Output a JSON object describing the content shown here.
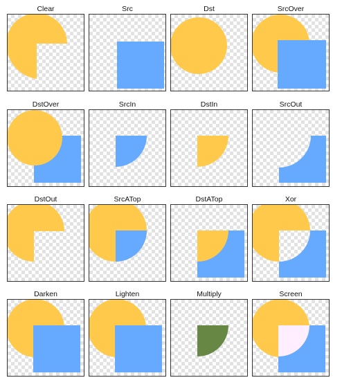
{
  "colors": {
    "circle": "#FFCA4C",
    "square": "#66AAFF",
    "multiply": "#668844",
    "screen": "#FFEEFF"
  },
  "modes": [
    {
      "id": "clear",
      "label": "Clear"
    },
    {
      "id": "src",
      "label": "Src"
    },
    {
      "id": "dst",
      "label": "Dst"
    },
    {
      "id": "srcover",
      "label": "SrcOver"
    },
    {
      "id": "dstover",
      "label": "DstOver"
    },
    {
      "id": "srcin",
      "label": "SrcIn"
    },
    {
      "id": "dstin",
      "label": "DstIn"
    },
    {
      "id": "srcout",
      "label": "SrcOut"
    },
    {
      "id": "dstout",
      "label": "DstOut"
    },
    {
      "id": "srcatop",
      "label": "SrcATop"
    },
    {
      "id": "dstatop",
      "label": "DstATop"
    },
    {
      "id": "xor",
      "label": "Xor"
    },
    {
      "id": "darken",
      "label": "Darken"
    },
    {
      "id": "lighten",
      "label": "Lighten"
    },
    {
      "id": "multiply",
      "label": "Multiply"
    },
    {
      "id": "screen",
      "label": "Screen"
    }
  ]
}
